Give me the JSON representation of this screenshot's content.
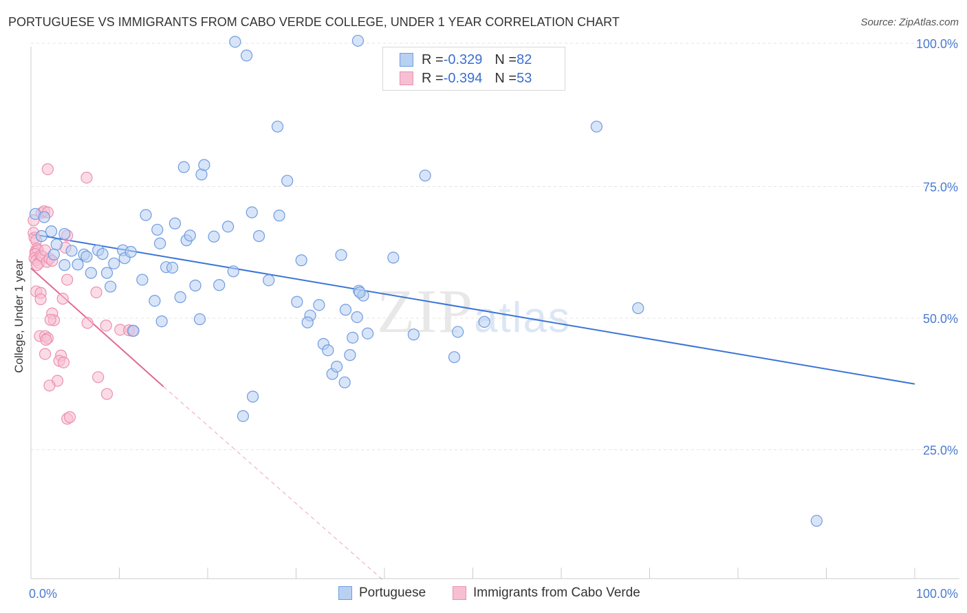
{
  "title": "PORTUGUESE VS IMMIGRANTS FROM CABO VERDE COLLEGE, UNDER 1 YEAR CORRELATION CHART",
  "source": "Source: ZipAtlas.com",
  "watermark": {
    "zip": "ZIP",
    "atlas": "atlas"
  },
  "legend": {
    "rows": [
      {
        "r_label": "R = ",
        "r_value": "-0.329",
        "n_label": "N = ",
        "n_value": "82"
      },
      {
        "r_label": "R = ",
        "r_value": "-0.394",
        "n_label": "N = ",
        "n_value": "53"
      }
    ],
    "bottom": [
      "Portuguese",
      "Immigrants from Cabo Verde"
    ]
  },
  "colors": {
    "blue_fill": "#b8d0f2",
    "blue_stroke": "#6f9be0",
    "blue_line": "#3a74d6",
    "pink_fill": "#f7bfd2",
    "pink_stroke": "#ec8fb0",
    "pink_line": "#e26794",
    "grid": "#e3e3e3",
    "tick_text": "#4a7bd0"
  },
  "chart_data": {
    "type": "scatter",
    "title": "PORTUGUESE VS IMMIGRANTS FROM CABO VERDE COLLEGE, UNDER 1 YEAR CORRELATION CHART",
    "xlabel": "",
    "ylabel": "College, Under 1 year",
    "xlim": [
      0,
      100
    ],
    "ylim": [
      0,
      105
    ],
    "x_tick_labels": [
      "0.0%",
      "100.0%"
    ],
    "y_ticks": [
      {
        "value": 100,
        "label": "100.0%"
      },
      {
        "value": 75,
        "label": "75.0%"
      },
      {
        "value": 50,
        "label": "50.0%"
      },
      {
        "value": 25,
        "label": "25.0%"
      }
    ],
    "grid": true,
    "series": [
      {
        "name": "Portuguese",
        "R": -0.329,
        "N": 82,
        "trend": {
          "x": [
            0,
            100
          ],
          "y": [
            66.0,
            37.5
          ]
        },
        "points": [
          [
            0.5,
            69.8
          ],
          [
            1.5,
            69.2
          ],
          [
            1.2,
            65.6
          ],
          [
            2.3,
            66.5
          ],
          [
            2.9,
            64.0
          ],
          [
            2.6,
            62.1
          ],
          [
            3.8,
            66.0
          ],
          [
            3.8,
            60.1
          ],
          [
            4.6,
            62.8
          ],
          [
            5.3,
            60.2
          ],
          [
            6.0,
            62.1
          ],
          [
            6.3,
            61.7
          ],
          [
            6.8,
            58.6
          ],
          [
            7.6,
            62.9
          ],
          [
            8.1,
            62.2
          ],
          [
            8.6,
            58.6
          ],
          [
            9.4,
            60.4
          ],
          [
            9.0,
            56.0
          ],
          [
            10.4,
            62.9
          ],
          [
            10.6,
            61.4
          ],
          [
            11.3,
            62.6
          ],
          [
            11.6,
            47.6
          ],
          [
            12.6,
            57.3
          ],
          [
            13.0,
            69.6
          ],
          [
            14.0,
            53.3
          ],
          [
            14.3,
            66.8
          ],
          [
            14.6,
            64.2
          ],
          [
            14.8,
            49.4
          ],
          [
            15.3,
            59.7
          ],
          [
            16.0,
            59.6
          ],
          [
            16.3,
            68.0
          ],
          [
            16.9,
            54.0
          ],
          [
            17.3,
            78.7
          ],
          [
            17.6,
            64.8
          ],
          [
            18.0,
            65.7
          ],
          [
            18.6,
            56.2
          ],
          [
            19.1,
            49.8
          ],
          [
            19.3,
            77.3
          ],
          [
            19.6,
            79.1
          ],
          [
            20.7,
            65.5
          ],
          [
            21.3,
            56.3
          ],
          [
            22.3,
            67.4
          ],
          [
            22.9,
            58.9
          ],
          [
            23.1,
            102.5
          ],
          [
            24.4,
            99.9
          ],
          [
            25.0,
            70.1
          ],
          [
            25.8,
            65.6
          ],
          [
            26.9,
            57.2
          ],
          [
            27.9,
            86.4
          ],
          [
            28.1,
            69.5
          ],
          [
            29.0,
            76.1
          ],
          [
            30.6,
            61.0
          ],
          [
            30.1,
            53.1
          ],
          [
            31.6,
            50.5
          ],
          [
            31.3,
            49.2
          ],
          [
            32.6,
            52.5
          ],
          [
            33.1,
            45.1
          ],
          [
            33.6,
            43.9
          ],
          [
            34.1,
            39.4
          ],
          [
            34.6,
            40.8
          ],
          [
            35.1,
            62.0
          ],
          [
            35.5,
            37.8
          ],
          [
            36.1,
            43.0
          ],
          [
            37.1,
            55.2
          ],
          [
            37.6,
            54.3
          ],
          [
            36.9,
            50.2
          ],
          [
            36.4,
            46.3
          ],
          [
            38.1,
            47.1
          ],
          [
            24.0,
            31.4
          ],
          [
            25.1,
            35.1
          ],
          [
            37.0,
            102.7
          ],
          [
            41.0,
            61.5
          ],
          [
            43.3,
            46.9
          ],
          [
            44.6,
            77.1
          ],
          [
            47.9,
            42.6
          ],
          [
            48.3,
            47.4
          ],
          [
            51.3,
            49.3
          ],
          [
            64.0,
            86.4
          ],
          [
            68.7,
            51.9
          ],
          [
            88.9,
            11.5
          ],
          [
            37.2,
            54.9
          ],
          [
            35.6,
            51.6
          ]
        ]
      },
      {
        "name": "Immigrants from Cabo Verde",
        "R": -0.394,
        "N": 53,
        "trend": {
          "x": [
            0,
            15
          ],
          "y": [
            59.5,
            37.0
          ]
        },
        "trend_extension": {
          "x": [
            15,
            40
          ],
          "y": [
            37.0,
            0
          ]
        },
        "points": [
          [
            0.3,
            68.6
          ],
          [
            0.3,
            66.2
          ],
          [
            0.4,
            65.3
          ],
          [
            0.6,
            64.8
          ],
          [
            0.7,
            63.2
          ],
          [
            0.5,
            62.6
          ],
          [
            0.8,
            62.9
          ],
          [
            0.5,
            62.2
          ],
          [
            0.4,
            61.4
          ],
          [
            0.6,
            61.0
          ],
          [
            0.9,
            60.5
          ],
          [
            1.1,
            61.9
          ],
          [
            0.7,
            60.1
          ],
          [
            1.3,
            61.7
          ],
          [
            1.6,
            62.9
          ],
          [
            1.8,
            60.7
          ],
          [
            1.2,
            70.0
          ],
          [
            1.5,
            70.3
          ],
          [
            1.9,
            70.1
          ],
          [
            2.1,
            61.3
          ],
          [
            2.4,
            60.9
          ],
          [
            1.9,
            78.3
          ],
          [
            6.3,
            76.7
          ],
          [
            4.1,
            65.7
          ],
          [
            3.9,
            63.4
          ],
          [
            0.6,
            55.1
          ],
          [
            1.1,
            54.8
          ],
          [
            1.1,
            53.6
          ],
          [
            3.6,
            53.7
          ],
          [
            4.1,
            57.3
          ],
          [
            2.4,
            50.9
          ],
          [
            2.6,
            49.6
          ],
          [
            2.2,
            49.7
          ],
          [
            6.4,
            49.1
          ],
          [
            8.5,
            48.6
          ],
          [
            10.1,
            47.8
          ],
          [
            11.1,
            47.7
          ],
          [
            11.5,
            47.6
          ],
          [
            1.0,
            46.6
          ],
          [
            1.6,
            46.6
          ],
          [
            1.9,
            46.2
          ],
          [
            1.7,
            45.9
          ],
          [
            1.6,
            43.2
          ],
          [
            3.4,
            42.9
          ],
          [
            3.2,
            41.9
          ],
          [
            3.7,
            41.6
          ],
          [
            7.4,
            54.9
          ],
          [
            3.0,
            38.1
          ],
          [
            7.6,
            38.8
          ],
          [
            8.6,
            35.6
          ],
          [
            2.1,
            37.2
          ],
          [
            4.1,
            30.9
          ],
          [
            4.4,
            31.2
          ]
        ]
      }
    ]
  }
}
